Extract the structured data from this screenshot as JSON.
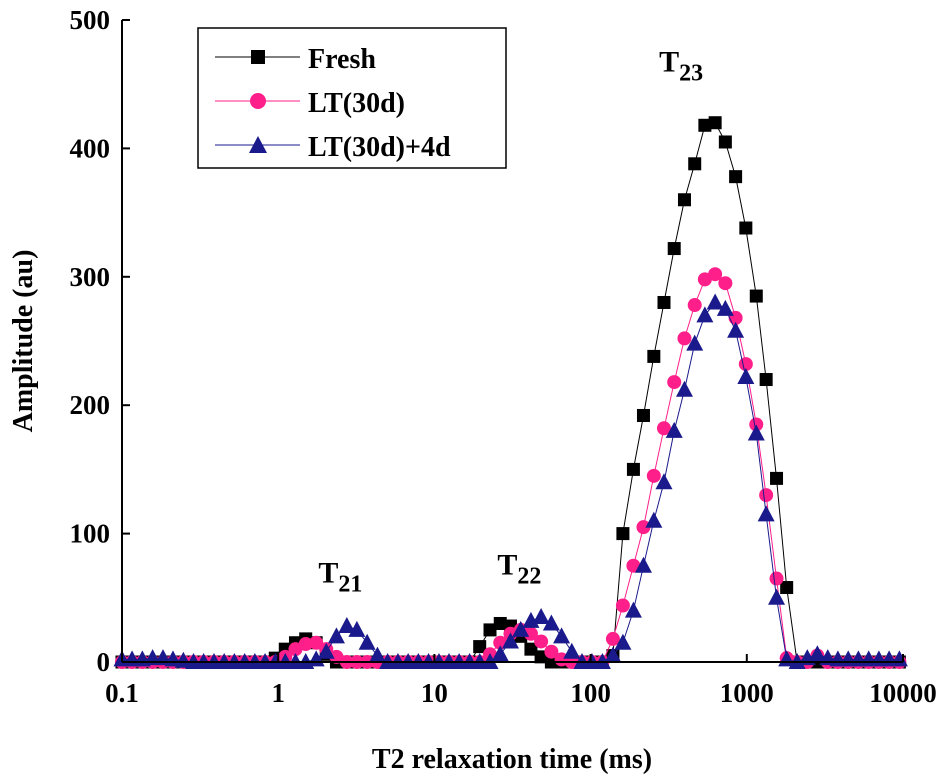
{
  "chart_data": {
    "type": "scatter",
    "xlabel": "T2 relaxation time (ms)",
    "ylabel": "Amplitude (au)",
    "xscale": "log",
    "xlim": [
      0.1,
      10000
    ],
    "ylim": [
      0,
      500
    ],
    "xticks": [
      "0.1",
      "1",
      "10",
      "100",
      "1000",
      "10000"
    ],
    "yticks": [
      "0",
      "100",
      "200",
      "300",
      "400",
      "500"
    ],
    "legend": {
      "position": "top-left",
      "entries": [
        "Fresh",
        "LT(30d)",
        "LT(30d)+4d"
      ]
    },
    "annotations": [
      {
        "base": "T",
        "sub": "21",
        "x": 2.5,
        "y": 62
      },
      {
        "base": "T",
        "sub": "22",
        "x": 35,
        "y": 68
      },
      {
        "base": "T",
        "sub": "23",
        "x": 380,
        "y": 460
      }
    ],
    "series": [
      {
        "name": "Fresh",
        "color": "#000000",
        "marker": "square",
        "x": [
          0.1,
          0.116,
          0.135,
          0.157,
          0.183,
          0.212,
          0.247,
          0.287,
          0.333,
          0.388,
          0.451,
          0.524,
          0.61,
          0.709,
          0.824,
          0.958,
          1.11,
          1.29,
          1.5,
          1.75,
          2.03,
          2.36,
          2.75,
          3.19,
          3.71,
          4.32,
          5.02,
          5.84,
          6.79,
          7.89,
          9.17,
          10.7,
          12.4,
          14.4,
          16.8,
          19.5,
          22.7,
          26.4,
          30.7,
          35.7,
          41.5,
          48.2,
          56.1,
          65.2,
          75.8,
          88.1,
          102,
          119,
          139,
          161,
          188,
          218,
          254,
          295,
          343,
          399,
          464,
          539,
          627,
          729,
          848,
          986,
          1150,
          1330,
          1550,
          1800,
          2100,
          2440,
          2830,
          3300,
          3830,
          4460,
          5180,
          6030,
          7010,
          8150,
          9480
        ],
        "values": [
          0,
          0,
          0,
          0,
          0,
          0,
          0,
          0,
          0,
          0,
          0,
          0,
          0,
          0,
          0,
          3,
          10,
          15,
          18,
          15,
          6,
          0,
          0,
          0,
          0,
          0,
          0,
          0,
          0,
          0,
          0,
          0,
          0,
          0,
          0,
          12,
          25,
          30,
          28,
          20,
          10,
          4,
          0,
          0,
          0,
          0,
          0,
          0,
          5,
          100,
          150,
          192,
          238,
          280,
          322,
          360,
          388,
          418,
          420,
          405,
          378,
          338,
          285,
          220,
          143,
          58,
          0,
          0,
          0,
          0,
          0,
          0,
          0,
          0,
          0,
          0,
          0
        ]
      },
      {
        "name": "LT(30d)",
        "color": "#ff1f8a",
        "marker": "circle",
        "x": [
          0.1,
          0.116,
          0.135,
          0.157,
          0.183,
          0.212,
          0.247,
          0.287,
          0.333,
          0.388,
          0.451,
          0.524,
          0.61,
          0.709,
          0.824,
          0.958,
          1.11,
          1.29,
          1.5,
          1.75,
          2.03,
          2.36,
          2.75,
          3.19,
          3.71,
          4.32,
          5.02,
          5.84,
          6.79,
          7.89,
          9.17,
          10.7,
          12.4,
          14.4,
          16.8,
          19.5,
          22.7,
          26.4,
          30.7,
          35.7,
          41.5,
          48.2,
          56.1,
          65.2,
          75.8,
          88.1,
          102,
          119,
          139,
          161,
          188,
          218,
          254,
          295,
          343,
          399,
          464,
          539,
          627,
          729,
          848,
          986,
          1150,
          1330,
          1550,
          1800,
          2100,
          2440,
          2830,
          3300,
          3830,
          4460,
          5180,
          6030,
          7010,
          8150,
          9480
        ],
        "values": [
          0,
          0,
          0,
          0,
          0,
          0,
          0,
          0,
          0,
          0,
          0,
          0,
          0,
          0,
          0,
          0,
          4,
          10,
          14,
          15,
          10,
          4,
          0,
          0,
          0,
          0,
          0,
          0,
          0,
          0,
          0,
          0,
          0,
          0,
          0,
          0,
          6,
          15,
          22,
          25,
          22,
          16,
          8,
          2,
          0,
          0,
          0,
          0,
          18,
          44,
          75,
          105,
          145,
          182,
          218,
          252,
          278,
          298,
          302,
          295,
          268,
          232,
          185,
          130,
          65,
          3,
          0,
          0,
          5,
          0,
          0,
          0,
          0,
          0,
          0,
          0,
          0
        ]
      },
      {
        "name": "LT(30d)+4d",
        "color": "#1a1a8c",
        "marker": "triangle",
        "x": [
          0.1,
          0.116,
          0.135,
          0.157,
          0.183,
          0.212,
          0.247,
          0.287,
          0.333,
          0.388,
          0.451,
          0.524,
          0.61,
          0.709,
          0.824,
          0.958,
          1.11,
          1.29,
          1.5,
          1.75,
          2.03,
          2.36,
          2.75,
          3.19,
          3.71,
          4.32,
          5.02,
          5.84,
          6.79,
          7.89,
          9.17,
          10.7,
          12.4,
          14.4,
          16.8,
          19.5,
          22.7,
          26.4,
          30.7,
          35.7,
          41.5,
          48.2,
          56.1,
          65.2,
          75.8,
          88.1,
          102,
          119,
          139,
          161,
          188,
          218,
          254,
          295,
          343,
          399,
          464,
          539,
          627,
          729,
          848,
          986,
          1150,
          1330,
          1550,
          1800,
          2100,
          2440,
          2830,
          3300,
          3830,
          4460,
          5180,
          6030,
          7010,
          8150,
          9480
        ],
        "values": [
          2,
          2,
          2,
          3,
          3,
          2,
          1,
          0,
          0,
          0,
          0,
          0,
          0,
          0,
          0,
          0,
          0,
          0,
          0,
          2,
          8,
          20,
          28,
          25,
          15,
          5,
          0,
          0,
          0,
          0,
          0,
          0,
          0,
          0,
          0,
          0,
          0,
          6,
          16,
          25,
          32,
          35,
          30,
          20,
          8,
          0,
          0,
          0,
          5,
          15,
          40,
          75,
          110,
          140,
          180,
          212,
          248,
          270,
          280,
          275,
          258,
          222,
          178,
          115,
          50,
          2,
          0,
          3,
          6,
          3,
          2,
          2,
          2,
          2,
          2,
          2,
          2
        ]
      }
    ]
  }
}
